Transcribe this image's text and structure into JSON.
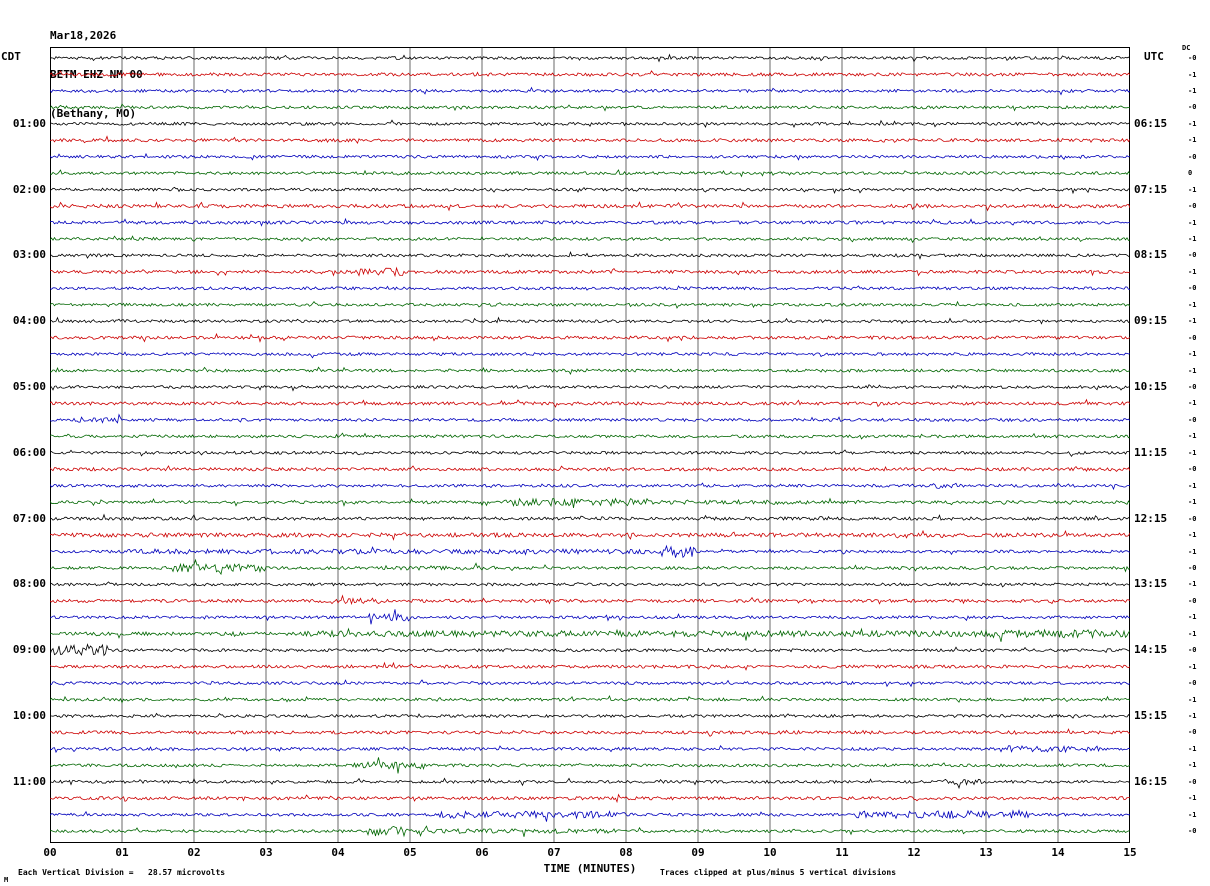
{
  "header": {
    "date": "Mar18,2026",
    "station": "BETM EHZ NM 00",
    "location": "(Bethany, MO)",
    "left_tz": "CDT",
    "right_tz": "UTC",
    "dc_label": "DC"
  },
  "footer": {
    "x_axis_title": "TIME (MINUTES)",
    "left_note": "Each Vertical Division =   28.57 microvolts",
    "right_note": "Traces clipped at plus/minus 5 vertical divisions",
    "corner_mark": "M"
  },
  "chart_data": {
    "type": "line",
    "subtype": "seismogram-helicorder",
    "title": "BETM EHZ NM 00 (Bethany, MO) Mar18,2026",
    "xlabel": "TIME (MINUTES)",
    "minutes_per_row": 15,
    "x_ticks": [
      "00",
      "01",
      "02",
      "03",
      "04",
      "05",
      "06",
      "07",
      "08",
      "09",
      "10",
      "11",
      "12",
      "13",
      "14",
      "15"
    ],
    "colors": {
      "black": "#000000",
      "red": "#cc0000",
      "blue": "#0000bb",
      "green": "#006600"
    },
    "color_cycle": [
      "black",
      "red",
      "blue",
      "green"
    ],
    "grid_color": "#444444",
    "rows": [
      {
        "left": "",
        "right": "",
        "dc": "-0",
        "amp": 0.9,
        "events": []
      },
      {
        "left": "",
        "right": "",
        "dc": "-1",
        "amp": 1.0,
        "events": []
      },
      {
        "left": "",
        "right": "",
        "dc": "-1",
        "amp": 0.9,
        "events": []
      },
      {
        "left": "",
        "right": "",
        "dc": "-0",
        "amp": 0.9,
        "events": []
      },
      {
        "left": "01:00",
        "right": "06:15",
        "dc": "-1",
        "amp": 0.9,
        "events": []
      },
      {
        "left": "",
        "right": "",
        "dc": "-1",
        "amp": 1.0,
        "events": []
      },
      {
        "left": "",
        "right": "",
        "dc": "-0",
        "amp": 0.9,
        "events": []
      },
      {
        "left": "",
        "right": "",
        "dc": "0",
        "amp": 0.9,
        "events": []
      },
      {
        "left": "02:00",
        "right": "07:15",
        "dc": "-1",
        "amp": 0.9,
        "events": []
      },
      {
        "left": "",
        "right": "",
        "dc": "-0",
        "amp": 1.1,
        "events": []
      },
      {
        "left": "",
        "right": "",
        "dc": "-1",
        "amp": 1.0,
        "events": []
      },
      {
        "left": "",
        "right": "",
        "dc": "-1",
        "amp": 0.9,
        "events": []
      },
      {
        "left": "03:00",
        "right": "08:15",
        "dc": "-0",
        "amp": 0.9,
        "events": []
      },
      {
        "left": "",
        "right": "",
        "dc": "-1",
        "amp": 1.0,
        "events": [
          [
            4.1,
            4.9,
            2.5
          ]
        ]
      },
      {
        "left": "",
        "right": "",
        "dc": "-0",
        "amp": 0.9,
        "events": []
      },
      {
        "left": "",
        "right": "",
        "dc": "-1",
        "amp": 0.9,
        "events": []
      },
      {
        "left": "04:00",
        "right": "09:15",
        "dc": "-1",
        "amp": 0.9,
        "events": []
      },
      {
        "left": "",
        "right": "",
        "dc": "-0",
        "amp": 1.0,
        "events": []
      },
      {
        "left": "",
        "right": "",
        "dc": "-1",
        "amp": 0.9,
        "events": []
      },
      {
        "left": "",
        "right": "",
        "dc": "-1",
        "amp": 0.9,
        "events": []
      },
      {
        "left": "05:00",
        "right": "10:15",
        "dc": "-0",
        "amp": 0.9,
        "events": []
      },
      {
        "left": "",
        "right": "",
        "dc": "-1",
        "amp": 1.0,
        "events": []
      },
      {
        "left": "",
        "right": "",
        "dc": "-0",
        "amp": 0.9,
        "events": [
          [
            0.3,
            1.0,
            2.0
          ]
        ]
      },
      {
        "left": "",
        "right": "",
        "dc": "-1",
        "amp": 0.9,
        "events": []
      },
      {
        "left": "06:00",
        "right": "11:15",
        "dc": "-1",
        "amp": 0.9,
        "events": []
      },
      {
        "left": "",
        "right": "",
        "dc": "-0",
        "amp": 1.0,
        "events": []
      },
      {
        "left": "",
        "right": "",
        "dc": "-1",
        "amp": 0.9,
        "events": [
          [
            12.2,
            12.6,
            2.0
          ]
        ]
      },
      {
        "left": "",
        "right": "",
        "dc": "-1",
        "amp": 0.9,
        "events": [
          [
            6.3,
            8.3,
            2.6
          ],
          [
            8.3,
            10.5,
            1.5
          ]
        ]
      },
      {
        "left": "07:00",
        "right": "12:15",
        "dc": "-0",
        "amp": 1.0,
        "events": []
      },
      {
        "left": "",
        "right": "",
        "dc": "-1",
        "amp": 1.3,
        "events": []
      },
      {
        "left": "",
        "right": "",
        "dc": "-1",
        "amp": 0.9,
        "events": [
          [
            1.0,
            9.0,
            1.7
          ],
          [
            8.5,
            9.0,
            2.5
          ]
        ]
      },
      {
        "left": "",
        "right": "",
        "dc": "-0",
        "amp": 0.9,
        "events": [
          [
            1.7,
            3.0,
            2.8
          ],
          [
            4.8,
            6.2,
            1.5
          ]
        ]
      },
      {
        "left": "08:00",
        "right": "13:15",
        "dc": "-1",
        "amp": 0.9,
        "events": []
      },
      {
        "left": "",
        "right": "",
        "dc": "-0",
        "amp": 1.0,
        "events": [
          [
            3.9,
            4.6,
            1.8
          ]
        ]
      },
      {
        "left": "",
        "right": "",
        "dc": "-1",
        "amp": 0.9,
        "events": [
          [
            4.4,
            5.0,
            2.6
          ]
        ]
      },
      {
        "left": "",
        "right": "",
        "dc": "-1",
        "amp": 1.1,
        "events": [
          [
            3.5,
            13.0,
            1.7
          ],
          [
            13.0,
            15.0,
            2.3
          ]
        ]
      },
      {
        "left": "09:00",
        "right": "14:15",
        "dc": "-0",
        "amp": 0.9,
        "events": [
          [
            0.0,
            0.8,
            4.0
          ]
        ]
      },
      {
        "left": "",
        "right": "",
        "dc": "-1",
        "amp": 1.0,
        "events": []
      },
      {
        "left": "",
        "right": "",
        "dc": "-0",
        "amp": 0.9,
        "events": []
      },
      {
        "left": "",
        "right": "",
        "dc": "-1",
        "amp": 0.9,
        "events": []
      },
      {
        "left": "10:00",
        "right": "15:15",
        "dc": "-1",
        "amp": 0.9,
        "events": []
      },
      {
        "left": "",
        "right": "",
        "dc": "-0",
        "amp": 1.0,
        "events": []
      },
      {
        "left": "",
        "right": "",
        "dc": "-1",
        "amp": 0.9,
        "events": [
          [
            1.3,
            2.0,
            1.6
          ],
          [
            13.2,
            14.6,
            2.2
          ]
        ]
      },
      {
        "left": "",
        "right": "",
        "dc": "-1",
        "amp": 0.9,
        "events": [
          [
            4.2,
            5.2,
            2.4
          ]
        ]
      },
      {
        "left": "11:00",
        "right": "16:15",
        "dc": "-0",
        "amp": 0.9,
        "events": [
          [
            12.4,
            13.0,
            2.0
          ]
        ]
      },
      {
        "left": "",
        "right": "",
        "dc": "-1",
        "amp": 1.0,
        "events": []
      },
      {
        "left": "",
        "right": "",
        "dc": "-1",
        "amp": 0.9,
        "events": [
          [
            5.4,
            8.0,
            2.4
          ],
          [
            11.2,
            13.6,
            2.8
          ]
        ]
      },
      {
        "left": "",
        "right": "",
        "dc": "-0",
        "amp": 0.9,
        "events": [
          [
            4.4,
            5.3,
            3.5
          ],
          [
            5.3,
            8.0,
            1.6
          ]
        ]
      }
    ]
  }
}
